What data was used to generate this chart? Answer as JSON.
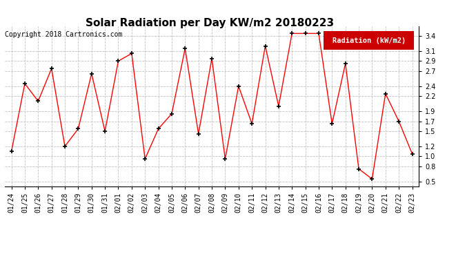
{
  "title": "Solar Radiation per Day KW/m2 20180223",
  "copyright_text": "Copyright 2018 Cartronics.com",
  "legend_label": "Radiation (kW/m2)",
  "dates": [
    "01/24",
    "01/25",
    "01/26",
    "01/27",
    "01/28",
    "01/29",
    "01/30",
    "01/31",
    "02/01",
    "02/02",
    "02/03",
    "02/04",
    "02/05",
    "02/06",
    "02/07",
    "02/08",
    "02/09",
    "02/10",
    "02/11",
    "02/12",
    "02/13",
    "02/14",
    "02/15",
    "02/16",
    "02/17",
    "02/18",
    "02/19",
    "02/20",
    "02/21",
    "02/22",
    "02/23"
  ],
  "values": [
    1.1,
    2.45,
    2.1,
    2.75,
    1.2,
    1.55,
    2.65,
    1.5,
    2.9,
    3.05,
    0.95,
    1.55,
    1.85,
    3.15,
    1.45,
    2.95,
    0.95,
    2.4,
    1.65,
    3.2,
    2.0,
    3.45,
    3.45,
    3.45,
    1.65,
    2.85,
    0.75,
    0.55,
    2.25,
    1.7,
    1.05
  ],
  "line_color": "#ff0000",
  "marker": "+",
  "marker_color": "#000000",
  "background_color": "#ffffff",
  "plot_bg_color": "#ffffff",
  "grid_color": "#c0c0c0",
  "ylim": [
    0.4,
    3.6
  ],
  "yticks": [
    0.5,
    0.8,
    1.0,
    1.2,
    1.5,
    1.7,
    1.9,
    2.2,
    2.4,
    2.7,
    2.9,
    3.1,
    3.4
  ],
  "title_fontsize": 11,
  "copyright_fontsize": 7,
  "tick_fontsize": 7,
  "legend_fontsize": 7.5,
  "legend_bg": "#cc0000",
  "legend_text_color": "#ffffff"
}
